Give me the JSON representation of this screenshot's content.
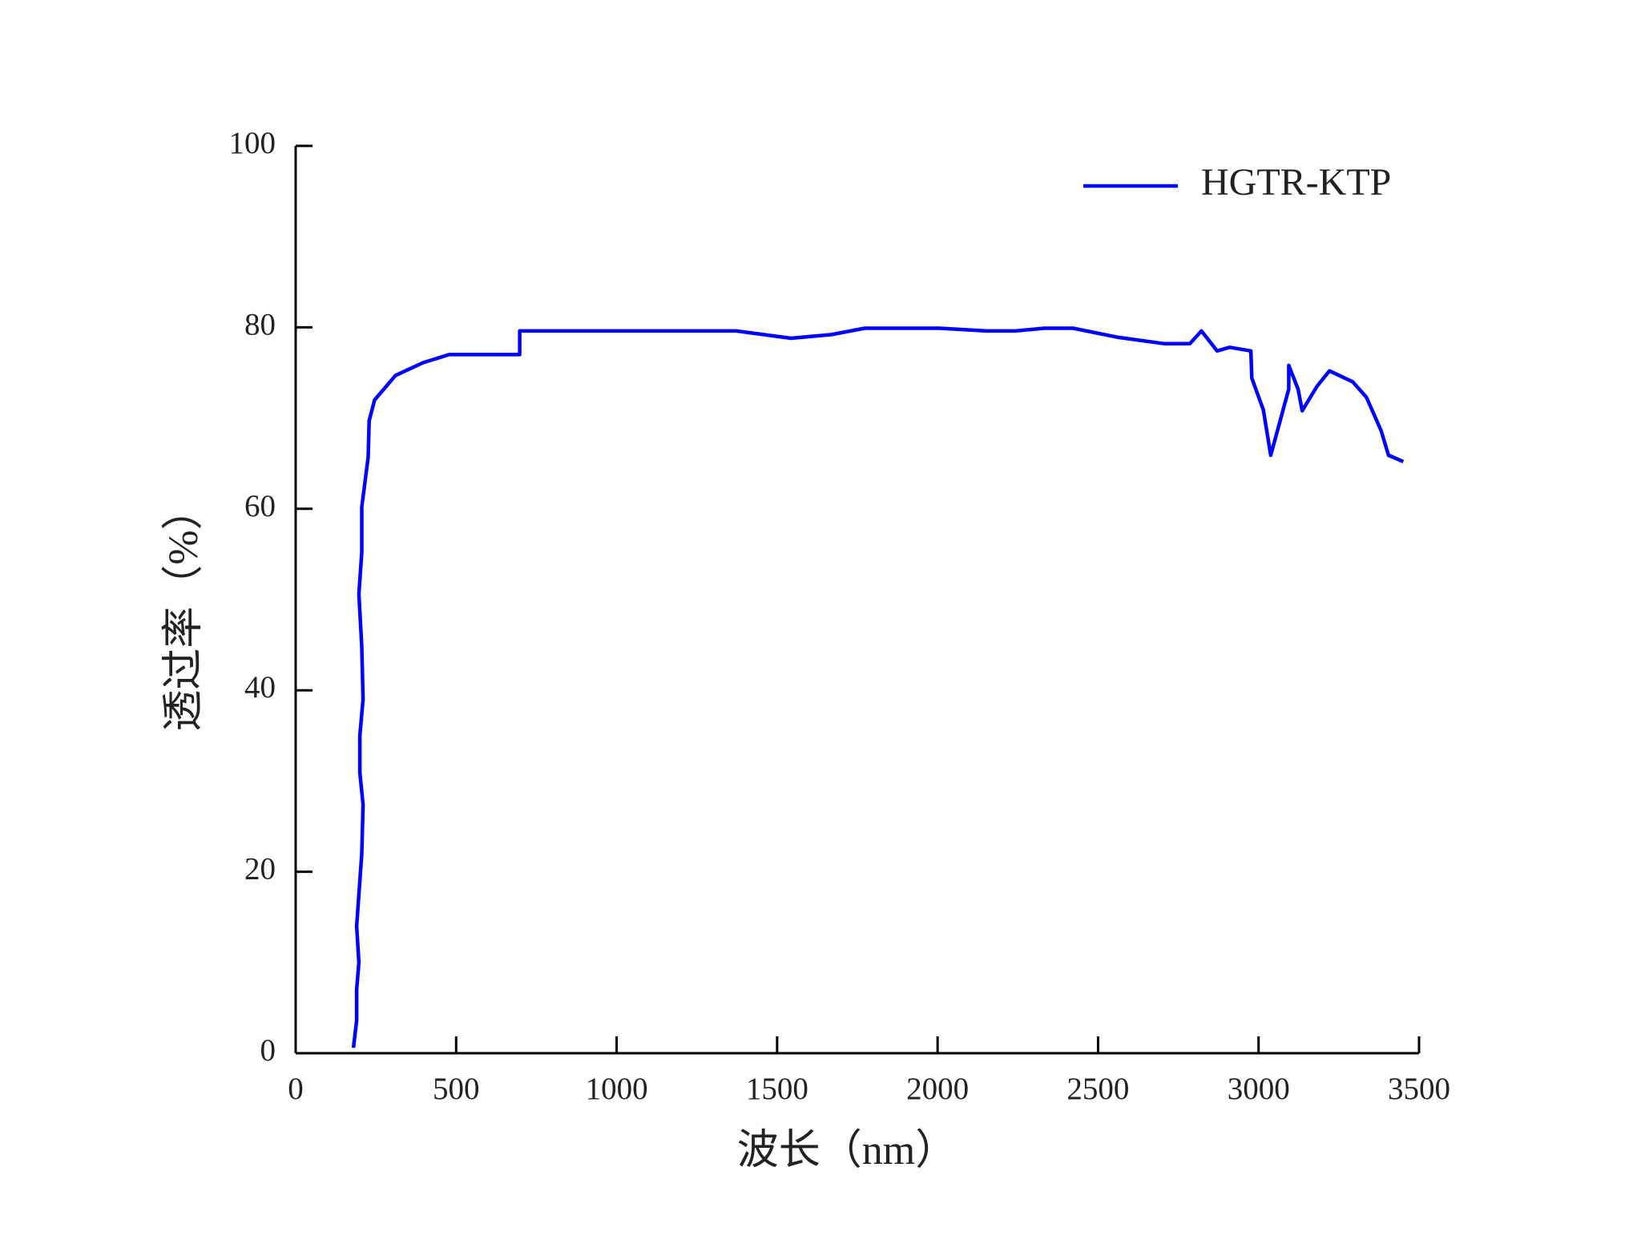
{
  "chart_data": {
    "type": "line",
    "xlabel": "波长（nm）",
    "ylabel": "透过率（%）",
    "xlim": [
      0,
      3500
    ],
    "xticks": [
      0,
      500,
      1000,
      1500,
      2000,
      2500,
      3000,
      3500
    ],
    "ylim": [
      0,
      100
    ],
    "yticks": [
      0,
      20,
      40,
      60,
      80,
      100
    ],
    "legend": "upper right",
    "x": [
      180,
      190,
      190,
      197,
      190,
      206,
      210,
      200,
      200,
      210,
      206,
      197,
      206,
      206,
      226,
      229,
      246,
      311,
      397,
      478,
      698,
      698,
      1373,
      1543,
      1668,
      1773,
      2006,
      2153,
      2242,
      2333,
      2422,
      2563,
      2707,
      2786,
      2822,
      2871,
      2910,
      2976,
      2979,
      3015,
      3038,
      3094,
      3094,
      3123,
      3136,
      3182,
      3221,
      3293,
      3336,
      3382,
      3405,
      3451
    ],
    "series": [
      {
        "name": "HGTR-KTP",
        "color": "#0000ff",
        "values": [
          0.6,
          3.6,
          7,
          10,
          14,
          22,
          27.4,
          30.9,
          35,
          39,
          44.8,
          50.6,
          55.2,
          60.2,
          65.7,
          69.7,
          72,
          74.7,
          76.1,
          77,
          77,
          79.6,
          79.6,
          78.8,
          79.2,
          79.9,
          79.9,
          79.6,
          79.6,
          79.9,
          79.9,
          78.9,
          78.2,
          78.2,
          79.6,
          77.4,
          77.8,
          77.4,
          74.4,
          70.9,
          65.9,
          73.2,
          75.8,
          73.2,
          70.8,
          73.5,
          75.2,
          74,
          72.3,
          68.6,
          65.9,
          65.2
        ]
      }
    ]
  }
}
